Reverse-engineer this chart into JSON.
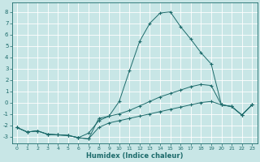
{
  "xlabel": "Humidex (Indice chaleur)",
  "bg_color": "#c8e6e6",
  "grid_color": "#ffffff",
  "line_color": "#1d6b6b",
  "xlim": [
    -0.5,
    23.5
  ],
  "ylim": [
    -3.6,
    8.8
  ],
  "yticks": [
    -3,
    -2,
    -1,
    0,
    1,
    2,
    3,
    4,
    5,
    6,
    7,
    8
  ],
  "xticks": [
    0,
    1,
    2,
    3,
    4,
    5,
    6,
    7,
    8,
    9,
    10,
    11,
    12,
    13,
    14,
    15,
    16,
    17,
    18,
    19,
    20,
    21,
    22,
    23
  ],
  "line1": {
    "x": [
      0,
      1,
      2,
      3,
      4,
      5,
      6,
      7,
      8,
      9,
      10,
      11,
      12,
      13,
      14,
      15,
      16,
      17,
      18,
      19,
      20,
      21,
      22,
      23
    ],
    "y": [
      -2.2,
      -2.6,
      -2.5,
      -2.8,
      -2.85,
      -2.9,
      -3.1,
      -3.2,
      -1.4,
      -1.2,
      0.1,
      2.8,
      5.4,
      7.0,
      7.9,
      8.0,
      6.7,
      5.6,
      4.4,
      3.4,
      -0.2,
      -0.35,
      -1.1,
      -0.2
    ]
  },
  "line2": {
    "x": [
      0,
      1,
      2,
      3,
      4,
      5,
      6,
      7,
      8,
      9,
      10,
      11,
      12,
      13,
      14,
      15,
      16,
      17,
      18,
      19,
      20,
      21,
      22,
      23
    ],
    "y": [
      -2.2,
      -2.6,
      -2.5,
      -2.8,
      -2.85,
      -2.9,
      -3.1,
      -2.7,
      -1.6,
      -1.2,
      -1.0,
      -0.7,
      -0.3,
      0.1,
      0.5,
      0.8,
      1.1,
      1.4,
      1.6,
      1.5,
      -0.2,
      -0.35,
      -1.1,
      -0.2
    ]
  },
  "line3": {
    "x": [
      0,
      1,
      2,
      3,
      4,
      5,
      6,
      7,
      8,
      9,
      10,
      11,
      12,
      13,
      14,
      15,
      16,
      17,
      18,
      19,
      20,
      21,
      22,
      23
    ],
    "y": [
      -2.2,
      -2.6,
      -2.5,
      -2.8,
      -2.85,
      -2.9,
      -3.1,
      -3.2,
      -2.2,
      -1.8,
      -1.6,
      -1.4,
      -1.2,
      -1.0,
      -0.8,
      -0.6,
      -0.4,
      -0.2,
      0.0,
      0.1,
      -0.2,
      -0.35,
      -1.1,
      -0.2
    ]
  }
}
